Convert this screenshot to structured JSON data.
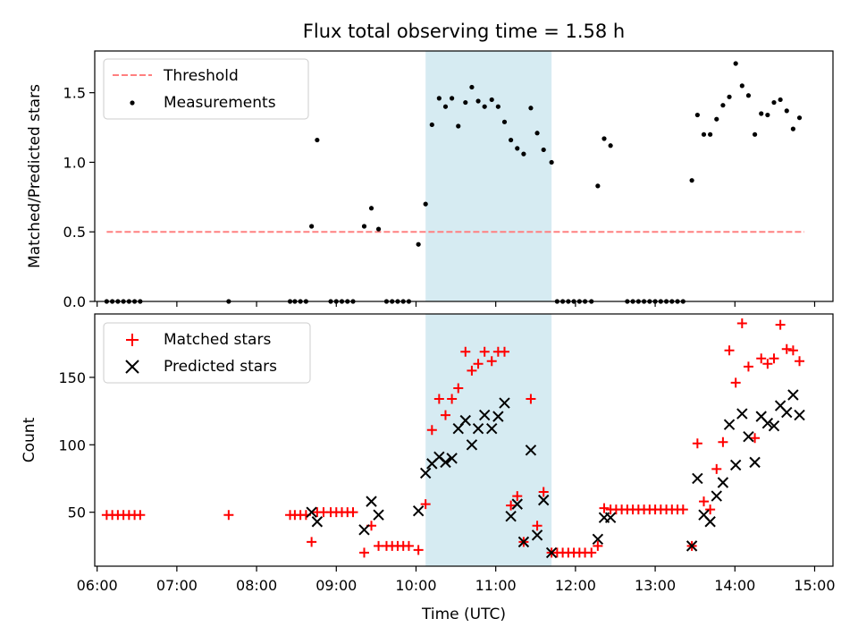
{
  "title": "Flux total observing time = 1.58 h",
  "colors": {
    "threshold": "#ff8080",
    "measurement": "#000000",
    "matched": "#ff0000",
    "predicted": "#000000",
    "span": "#add8e6"
  },
  "chart_data": [
    {
      "type": "scatter",
      "ylabel": "Matched/Predicted stars",
      "xlim": [
        5.97,
        15.23
      ],
      "ylim": [
        0,
        1.8
      ],
      "yticks": [
        0.0,
        0.5,
        1.0,
        1.5
      ],
      "ytick_labels": [
        "0.0",
        "0.5",
        "1.0",
        "1.5"
      ],
      "xticks_hours": [
        6,
        7,
        8,
        9,
        10,
        11,
        12,
        13,
        14,
        15
      ],
      "shaded_span": [
        10.12,
        11.7
      ],
      "legend": {
        "position": "upper-left",
        "entries": [
          "Threshold",
          "Measurements"
        ]
      },
      "threshold": {
        "name": "Threshold",
        "x": [
          6.12,
          14.87
        ],
        "y": 0.5
      },
      "series": [
        {
          "name": "Measurements",
          "marker": "dot",
          "points": [
            [
              6.12,
              0
            ],
            [
              6.19,
              0
            ],
            [
              6.26,
              0
            ],
            [
              6.33,
              0
            ],
            [
              6.4,
              0
            ],
            [
              6.47,
              0
            ],
            [
              6.54,
              0
            ],
            [
              7.65,
              0
            ],
            [
              8.42,
              0
            ],
            [
              8.48,
              0
            ],
            [
              8.55,
              0
            ],
            [
              8.62,
              0
            ],
            [
              8.69,
              0.54
            ],
            [
              8.76,
              1.16
            ],
            [
              8.93,
              0
            ],
            [
              9.0,
              0
            ],
            [
              9.07,
              0
            ],
            [
              9.14,
              0
            ],
            [
              9.21,
              0
            ],
            [
              9.35,
              0.54
            ],
            [
              9.44,
              0.67
            ],
            [
              9.53,
              0.52
            ],
            [
              9.63,
              0
            ],
            [
              9.7,
              0
            ],
            [
              9.77,
              0
            ],
            [
              9.84,
              0
            ],
            [
              9.91,
              0
            ],
            [
              10.03,
              0.41
            ],
            [
              10.12,
              0.7
            ],
            [
              10.2,
              1.27
            ],
            [
              10.29,
              1.46
            ],
            [
              10.37,
              1.4
            ],
            [
              10.45,
              1.46
            ],
            [
              10.53,
              1.26
            ],
            [
              10.62,
              1.43
            ],
            [
              10.7,
              1.54
            ],
            [
              10.78,
              1.44
            ],
            [
              10.86,
              1.4
            ],
            [
              10.95,
              1.45
            ],
            [
              11.03,
              1.4
            ],
            [
              11.11,
              1.29
            ],
            [
              11.19,
              1.16
            ],
            [
              11.27,
              1.1
            ],
            [
              11.35,
              1.06
            ],
            [
              11.44,
              1.39
            ],
            [
              11.52,
              1.21
            ],
            [
              11.6,
              1.09
            ],
            [
              11.7,
              1.0
            ],
            [
              11.77,
              0
            ],
            [
              11.84,
              0
            ],
            [
              11.91,
              0
            ],
            [
              11.98,
              0
            ],
            [
              12.05,
              0
            ],
            [
              12.12,
              0
            ],
            [
              12.2,
              0
            ],
            [
              12.28,
              0.83
            ],
            [
              12.36,
              1.17
            ],
            [
              12.44,
              1.12
            ],
            [
              12.65,
              0
            ],
            [
              12.72,
              0
            ],
            [
              12.79,
              0
            ],
            [
              12.86,
              0
            ],
            [
              12.93,
              0
            ],
            [
              13.0,
              0
            ],
            [
              13.07,
              0
            ],
            [
              13.14,
              0
            ],
            [
              13.21,
              0
            ],
            [
              13.28,
              0
            ],
            [
              13.35,
              0
            ],
            [
              13.46,
              0.87
            ],
            [
              13.53,
              1.34
            ],
            [
              13.61,
              1.2
            ],
            [
              13.69,
              1.2
            ],
            [
              13.77,
              1.31
            ],
            [
              13.85,
              1.41
            ],
            [
              13.93,
              1.47
            ],
            [
              14.01,
              1.71
            ],
            [
              14.09,
              1.55
            ],
            [
              14.17,
              1.48
            ],
            [
              14.25,
              1.2
            ],
            [
              14.33,
              1.35
            ],
            [
              14.41,
              1.34
            ],
            [
              14.49,
              1.43
            ],
            [
              14.57,
              1.45
            ],
            [
              14.65,
              1.37
            ],
            [
              14.73,
              1.24
            ],
            [
              14.81,
              1.32
            ]
          ]
        }
      ]
    },
    {
      "type": "scatter",
      "xlabel": "Time (UTC)",
      "ylabel": "Count",
      "xlim": [
        5.97,
        15.23
      ],
      "ylim": [
        10,
        197
      ],
      "yticks": [
        50,
        100,
        150
      ],
      "ytick_labels": [
        "50",
        "100",
        "150"
      ],
      "xticks_hours": [
        6,
        7,
        8,
        9,
        10,
        11,
        12,
        13,
        14,
        15
      ],
      "xtick_labels": [
        "06:00",
        "07:00",
        "08:00",
        "09:00",
        "10:00",
        "11:00",
        "12:00",
        "13:00",
        "14:00",
        "15:00"
      ],
      "shaded_span": [
        10.12,
        11.7
      ],
      "legend": {
        "position": "upper-left",
        "entries": [
          "Matched stars",
          "Predicted stars"
        ]
      },
      "series": [
        {
          "name": "Matched stars",
          "marker": "plus",
          "points": [
            [
              6.12,
              48
            ],
            [
              6.19,
              48
            ],
            [
              6.26,
              48
            ],
            [
              6.33,
              48
            ],
            [
              6.4,
              48
            ],
            [
              6.47,
              48
            ],
            [
              6.54,
              48
            ],
            [
              7.65,
              48
            ],
            [
              8.42,
              48
            ],
            [
              8.48,
              48
            ],
            [
              8.55,
              48
            ],
            [
              8.62,
              48
            ],
            [
              8.69,
              28
            ],
            [
              8.76,
              50
            ],
            [
              8.84,
              50
            ],
            [
              8.93,
              50
            ],
            [
              9.0,
              50
            ],
            [
              9.07,
              50
            ],
            [
              9.14,
              50
            ],
            [
              9.21,
              50
            ],
            [
              9.35,
              20
            ],
            [
              9.44,
              40
            ],
            [
              9.53,
              25
            ],
            [
              9.63,
              25
            ],
            [
              9.7,
              25
            ],
            [
              9.77,
              25
            ],
            [
              9.84,
              25
            ],
            [
              9.91,
              25
            ],
            [
              10.03,
              22
            ],
            [
              10.12,
              56
            ],
            [
              10.2,
              111
            ],
            [
              10.29,
              134
            ],
            [
              10.37,
              122
            ],
            [
              10.45,
              134
            ],
            [
              10.53,
              142
            ],
            [
              10.62,
              169
            ],
            [
              10.7,
              155
            ],
            [
              10.78,
              160
            ],
            [
              10.86,
              169
            ],
            [
              10.95,
              162
            ],
            [
              11.03,
              169
            ],
            [
              11.11,
              169
            ],
            [
              11.19,
              55
            ],
            [
              11.27,
              62
            ],
            [
              11.35,
              28
            ],
            [
              11.44,
              134
            ],
            [
              11.52,
              40
            ],
            [
              11.6,
              65
            ],
            [
              11.7,
              20
            ],
            [
              11.77,
              20
            ],
            [
              11.84,
              20
            ],
            [
              11.91,
              20
            ],
            [
              11.98,
              20
            ],
            [
              12.05,
              20
            ],
            [
              12.12,
              20
            ],
            [
              12.2,
              20
            ],
            [
              12.28,
              25
            ],
            [
              12.36,
              53
            ],
            [
              12.44,
              52
            ],
            [
              12.51,
              52
            ],
            [
              12.58,
              52
            ],
            [
              12.65,
              52
            ],
            [
              12.72,
              52
            ],
            [
              12.79,
              52
            ],
            [
              12.86,
              52
            ],
            [
              12.93,
              52
            ],
            [
              13.0,
              52
            ],
            [
              13.07,
              52
            ],
            [
              13.14,
              52
            ],
            [
              13.21,
              52
            ],
            [
              13.28,
              52
            ],
            [
              13.35,
              52
            ],
            [
              13.46,
              25
            ],
            [
              13.53,
              101
            ],
            [
              13.61,
              58
            ],
            [
              13.69,
              52
            ],
            [
              13.77,
              82
            ],
            [
              13.85,
              102
            ],
            [
              13.93,
              170
            ],
            [
              14.01,
              146
            ],
            [
              14.09,
              190
            ],
            [
              14.17,
              158
            ],
            [
              14.25,
              105
            ],
            [
              14.33,
              164
            ],
            [
              14.41,
              160
            ],
            [
              14.49,
              164
            ],
            [
              14.57,
              189
            ],
            [
              14.65,
              171
            ],
            [
              14.73,
              170
            ],
            [
              14.81,
              162
            ]
          ]
        },
        {
          "name": "Predicted stars",
          "marker": "x",
          "points": [
            [
              8.69,
              50
            ],
            [
              8.76,
              43
            ],
            [
              9.35,
              37
            ],
            [
              9.44,
              58
            ],
            [
              9.53,
              48
            ],
            [
              10.03,
              51
            ],
            [
              10.12,
              79
            ],
            [
              10.2,
              86
            ],
            [
              10.29,
              91
            ],
            [
              10.37,
              87
            ],
            [
              10.45,
              90
            ],
            [
              10.53,
              112
            ],
            [
              10.62,
              118
            ],
            [
              10.7,
              100
            ],
            [
              10.78,
              112
            ],
            [
              10.86,
              122
            ],
            [
              10.95,
              112
            ],
            [
              11.03,
              121
            ],
            [
              11.11,
              131
            ],
            [
              11.19,
              47
            ],
            [
              11.27,
              56
            ],
            [
              11.35,
              28
            ],
            [
              11.44,
              96
            ],
            [
              11.52,
              33
            ],
            [
              11.6,
              59
            ],
            [
              11.7,
              20
            ],
            [
              12.28,
              30
            ],
            [
              12.36,
              46
            ],
            [
              12.44,
              46
            ],
            [
              13.46,
              25
            ],
            [
              13.53,
              75
            ],
            [
              13.61,
              48
            ],
            [
              13.69,
              43
            ],
            [
              13.77,
              62
            ],
            [
              13.85,
              72
            ],
            [
              13.93,
              115
            ],
            [
              14.01,
              85
            ],
            [
              14.09,
              123
            ],
            [
              14.17,
              106
            ],
            [
              14.25,
              87
            ],
            [
              14.33,
              121
            ],
            [
              14.41,
              116
            ],
            [
              14.49,
              114
            ],
            [
              14.57,
              129
            ],
            [
              14.65,
              124
            ],
            [
              14.73,
              137
            ],
            [
              14.81,
              122
            ]
          ]
        }
      ]
    }
  ]
}
